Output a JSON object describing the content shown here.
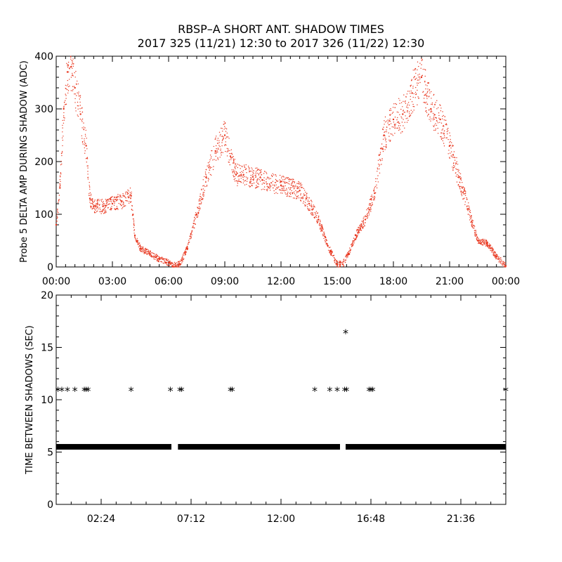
{
  "header": {
    "title": "RBSP–A SHORT ANT. SHADOW TIMES",
    "subtitle": "2017 325 (11/21) 12:30 to 2017 326 (11/22) 12:30"
  },
  "colors": {
    "series_top": "#e8341c",
    "series_bottom": "#000000",
    "axes": "#000000"
  },
  "chart_data": [
    {
      "type": "scatter",
      "ylabel": "Probe 5 DELTA AMP DURING SHADOW (ADC)",
      "xlabel": "",
      "xlim": [
        0,
        24
      ],
      "ylim": [
        0,
        400
      ],
      "x_ticks": [
        "00:00",
        "03:00",
        "06:00",
        "09:00",
        "12:00",
        "15:00",
        "18:00",
        "21:00",
        "00:00"
      ],
      "y_ticks": [
        "0",
        "100",
        "200",
        "300",
        "400"
      ],
      "series": [
        {
          "color": "#e8341c",
          "x": [
            0.0,
            0.2,
            0.4,
            0.6,
            0.8,
            1.0,
            1.3,
            1.6,
            1.8,
            2.0,
            2.5,
            3.0,
            3.5,
            4.0,
            4.2,
            4.5,
            5.0,
            5.5,
            6.0,
            6.2,
            6.6,
            7.0,
            7.5,
            8.0,
            8.5,
            9.0,
            9.3,
            9.6,
            10.0,
            11.0,
            12.0,
            13.0,
            13.5,
            14.0,
            14.5,
            15.0,
            15.3,
            15.6,
            16.0,
            16.5,
            17.0,
            17.5,
            18.0,
            18.5,
            19.0,
            19.5,
            20.0,
            20.5,
            21.0,
            21.5,
            22.0,
            22.5,
            23.0,
            23.5,
            24.0
          ],
          "y": [
            80,
            150,
            300,
            370,
            380,
            340,
            290,
            230,
            130,
            115,
            115,
            120,
            125,
            135,
            60,
            35,
            25,
            15,
            8,
            2,
            5,
            35,
            100,
            170,
            220,
            250,
            210,
            175,
            175,
            165,
            155,
            145,
            120,
            90,
            40,
            5,
            5,
            25,
            60,
            90,
            140,
            250,
            280,
            290,
            330,
            360,
            300,
            280,
            230,
            170,
            110,
            50,
            45,
            20,
            2
          ]
        }
      ]
    },
    {
      "type": "scatter",
      "ylabel": "TIME BETWEEN SHADOWS (SEC)",
      "xlabel": "",
      "xlim": [
        0,
        24
      ],
      "ylim": [
        0,
        20
      ],
      "x_ticks": [
        "02:24",
        "07:12",
        "12:00",
        "16:48",
        "21:36"
      ],
      "y_ticks": [
        "0",
        "5",
        "10",
        "15",
        "20"
      ],
      "series": [
        {
          "color": "#000000",
          "marker": "*",
          "x": [
            0.1,
            0.3,
            0.6,
            1.0,
            1.5,
            1.6,
            1.7,
            4.0,
            6.1,
            6.6,
            6.7,
            9.3,
            9.4,
            13.8,
            14.6,
            15.0,
            15.4,
            15.45,
            15.5,
            16.7,
            16.8,
            16.9,
            24.0
          ],
          "y": [
            11,
            11,
            11,
            11,
            11,
            11,
            11,
            11,
            11,
            11,
            11,
            11,
            11,
            11,
            11,
            11,
            11,
            16.5,
            11,
            11,
            11,
            11,
            11
          ],
          "baseline_value": 5.5,
          "baseline_segments": [
            [
              0.0,
              6.15
            ],
            [
              6.5,
              15.15
            ],
            [
              15.45,
              24.0
            ]
          ]
        }
      ]
    }
  ]
}
